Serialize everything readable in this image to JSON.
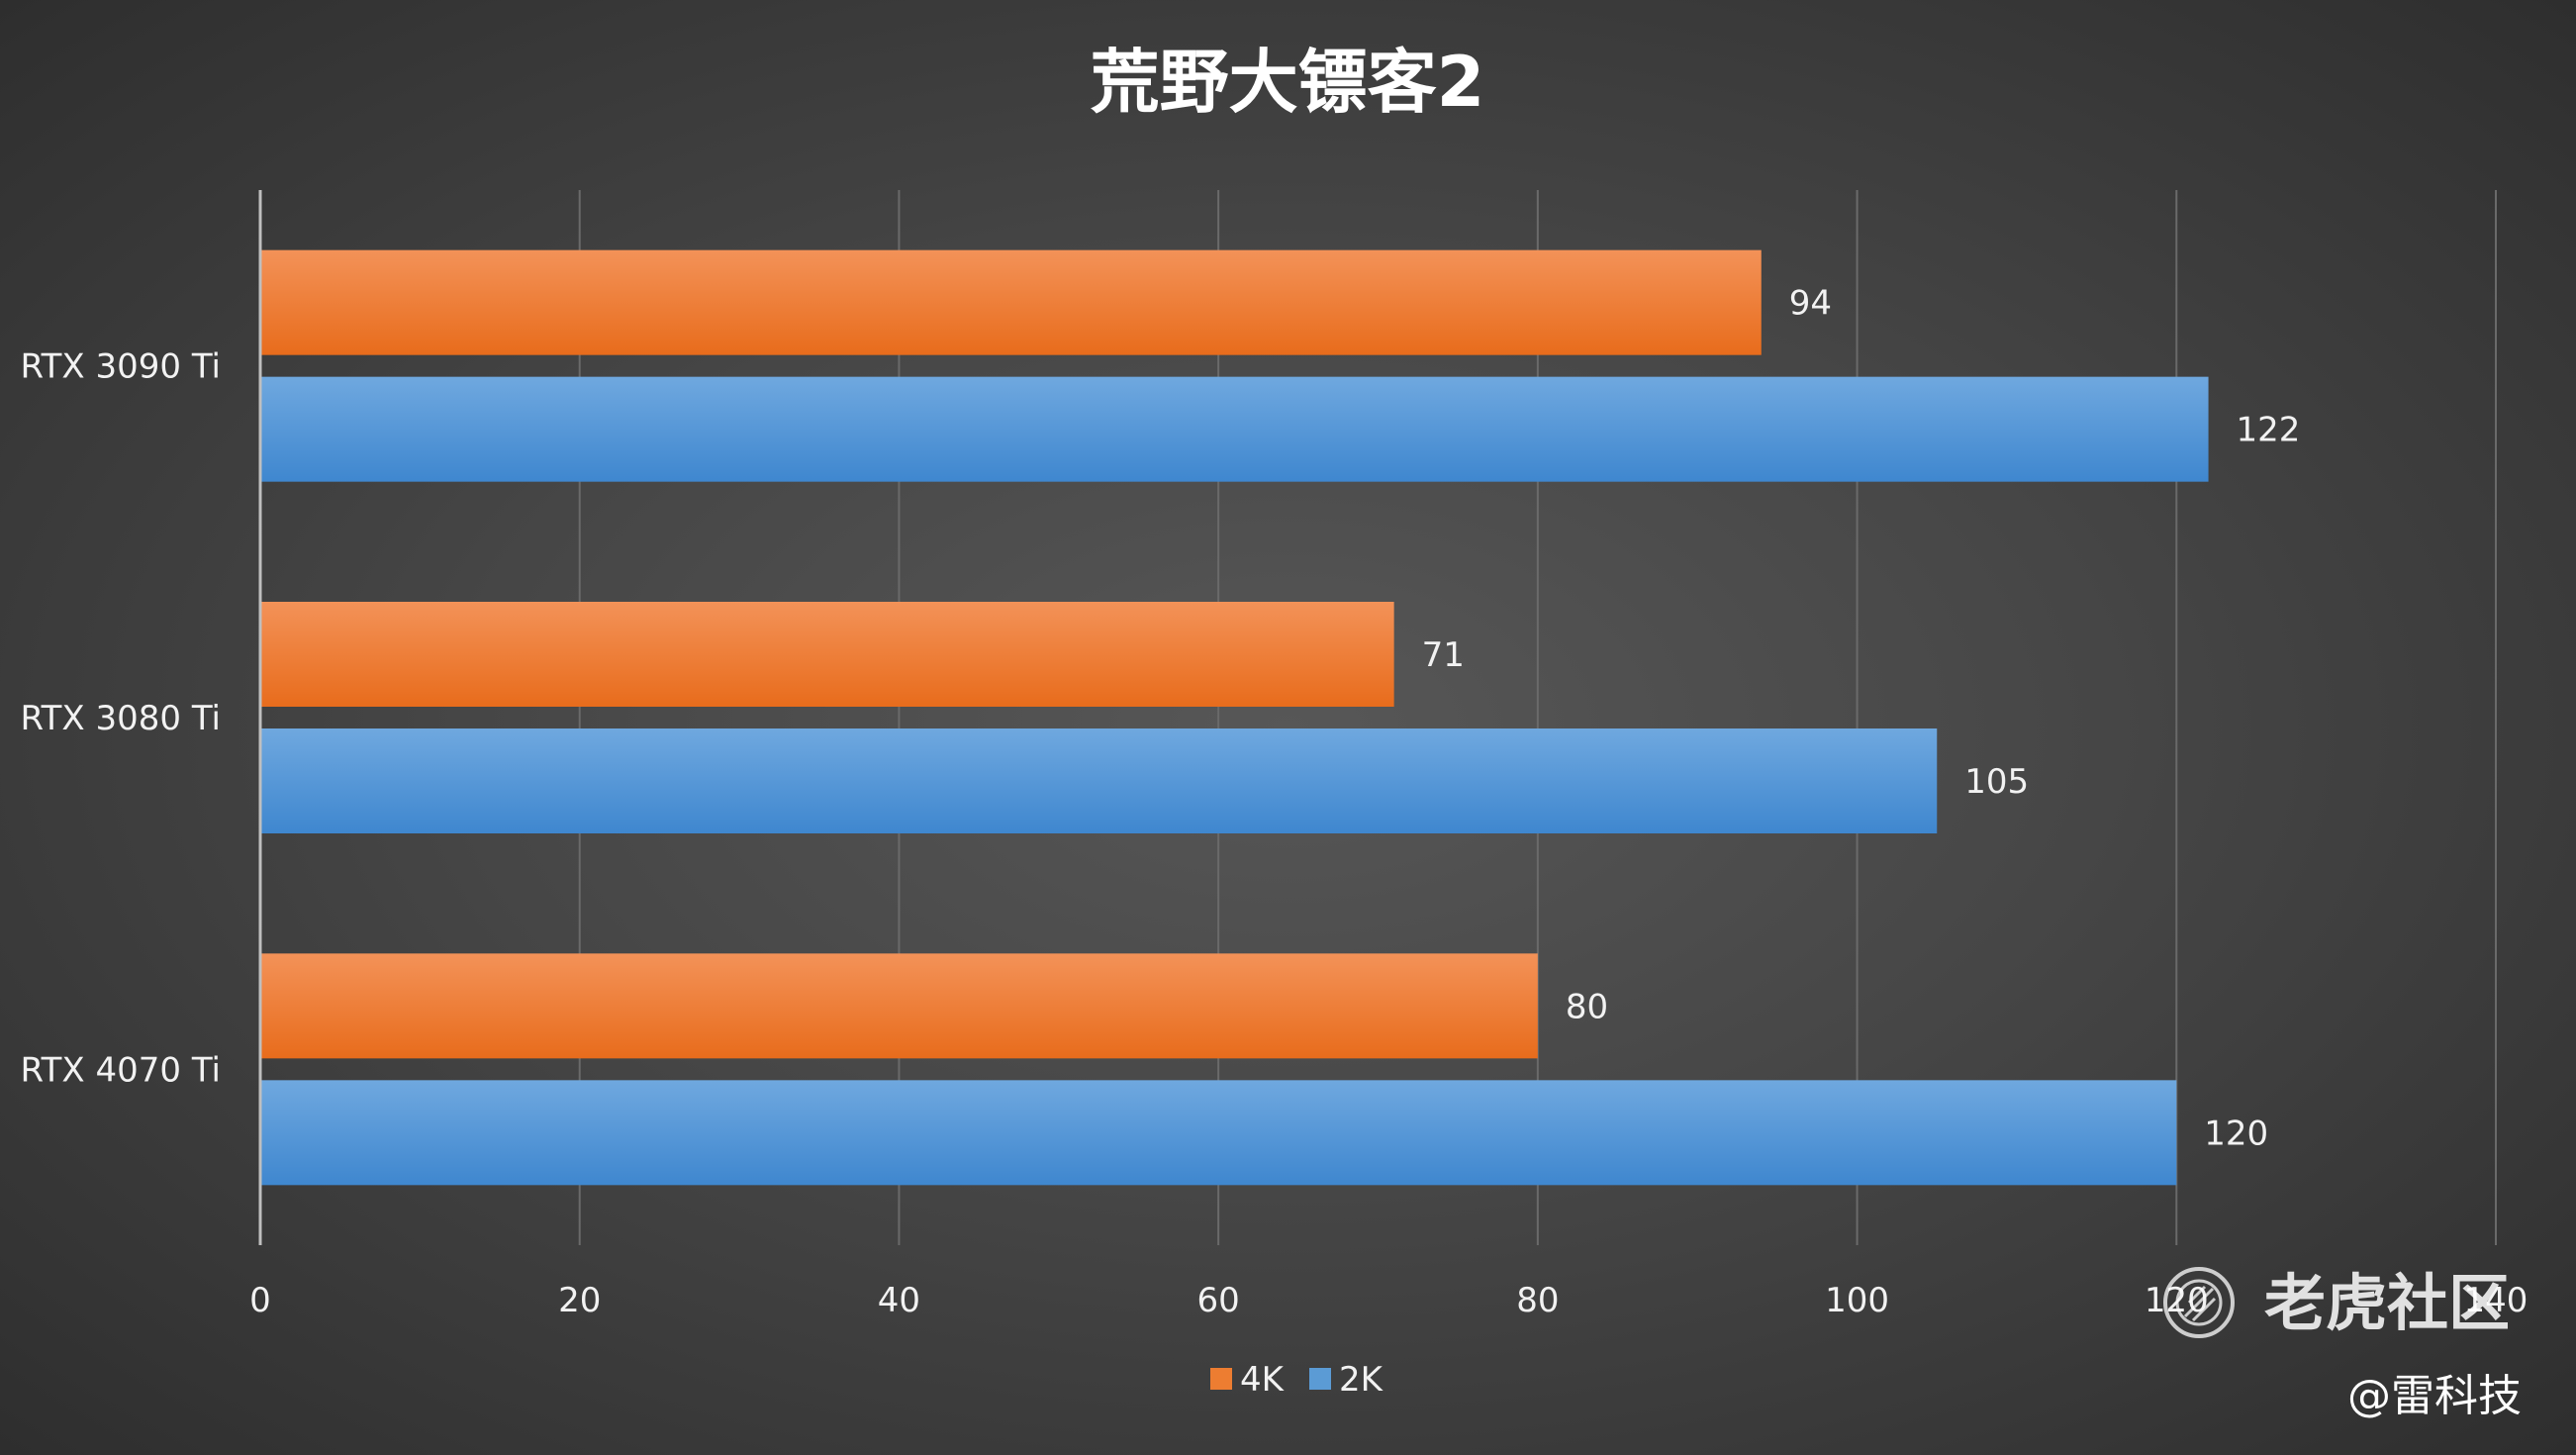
{
  "chart_data": {
    "type": "bar",
    "orientation": "horizontal",
    "title": "荒野大镖客2",
    "categories": [
      "RTX 3090 Ti",
      "RTX 3080 Ti",
      "RTX 4070 Ti"
    ],
    "series": [
      {
        "name": "4K",
        "values": [
          94,
          71,
          80
        ],
        "color": "#ed7d31"
      },
      {
        "name": "2K",
        "values": [
          122,
          105,
          120
        ],
        "color": "#5b9bd5"
      }
    ],
    "xlim": [
      0,
      140
    ],
    "xticks": [
      "0",
      "20",
      "40",
      "60",
      "80",
      "100",
      "120",
      "140"
    ],
    "grid": true,
    "legend_position": "bottom",
    "data_labels": true
  },
  "watermark": {
    "text": "老虎社区",
    "icon": "tiger-community-logo-icon"
  },
  "credit": "@雷科技"
}
